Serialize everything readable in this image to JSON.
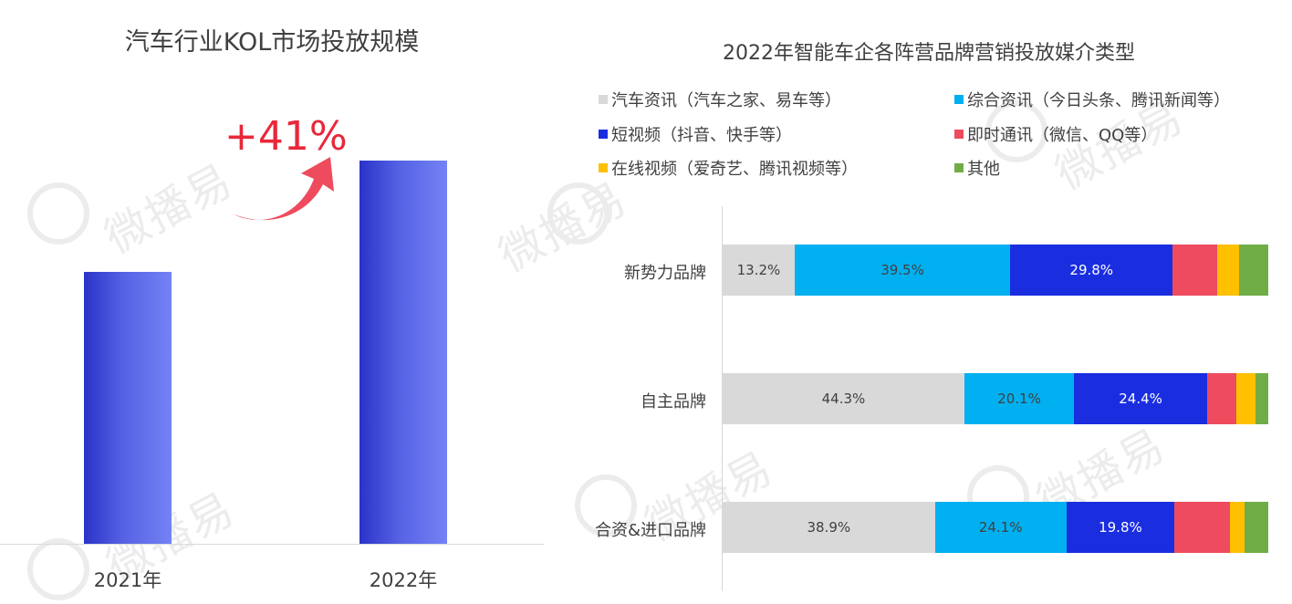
{
  "left_chart": {
    "title": "汽车行业KOL市场投放规模",
    "growth_label": "+41%",
    "chart_data": {
      "type": "bar",
      "categories": [
        "2021年",
        "2022年"
      ],
      "values": [
        1.0,
        1.41
      ],
      "ylabel": "",
      "annotation": "+41%"
    }
  },
  "right_chart": {
    "title": "2022年智能车企各阵营品牌营销投放媒介类型",
    "chart_data": {
      "type": "bar",
      "orientation": "horizontal",
      "stacked": true,
      "normalized": true,
      "categories": [
        "新势力品牌",
        "自主品牌",
        "合资&进口品牌"
      ],
      "series": [
        {
          "name": "汽车资讯（汽车之家、易车等）",
          "color": "#d9d9d9",
          "values": [
            13.2,
            44.3,
            38.9
          ]
        },
        {
          "name": "综合资讯（今日头条、腾讯新闻等）",
          "color": "#00b0f0",
          "values": [
            39.5,
            20.1,
            24.1
          ]
        },
        {
          "name": "短视频（抖音、快手等）",
          "color": "#1a2ee0",
          "values": [
            29.8,
            24.4,
            19.8
          ]
        },
        {
          "name": "即时通讯（微信、QQ等）",
          "color": "#ee4b5e",
          "values": [
            8.2,
            5.4,
            10.2
          ]
        },
        {
          "name": "在线视频（爱奇艺、腾讯视频等）",
          "color": "#ffc000",
          "values": [
            3.9,
            3.5,
            2.7
          ]
        },
        {
          "name": "其他",
          "color": "#70ad47",
          "values": [
            5.4,
            2.3,
            4.3
          ]
        }
      ],
      "data_labels": [
        [
          "13.2%",
          "39.5%",
          "29.8%",
          "",
          "",
          ""
        ],
        [
          "44.3%",
          "20.1%",
          "24.4%",
          "",
          "",
          ""
        ],
        [
          "38.9%",
          "24.1%",
          "19.8%",
          "",
          "",
          ""
        ]
      ],
      "legend_position": "top"
    }
  },
  "watermark": "微播易"
}
